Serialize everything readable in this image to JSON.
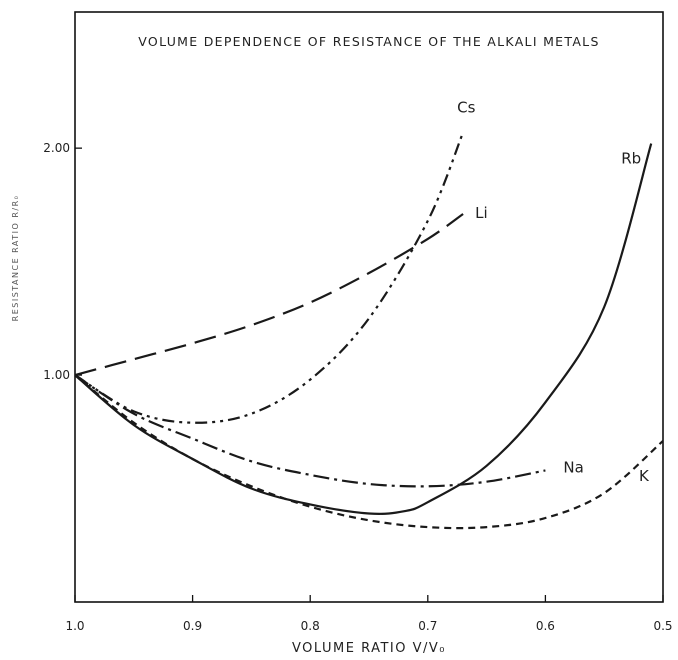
{
  "chart_data": {
    "type": "line",
    "title": "VOLUME DEPENDENCE OF RESISTANCE OF THE ALKALI METALS",
    "xlabel": "VOLUME RATIO V/V₀",
    "ylabel": "RESISTANCE RATIO R/R₀",
    "xlim": [
      1.0,
      0.5
    ],
    "ylim": [
      0.0,
      2.6
    ],
    "x_ticks": [
      1.0,
      0.9,
      0.8,
      0.7,
      0.6,
      0.5
    ],
    "x_tick_labels": [
      "1.0",
      "0.9",
      "0.8",
      "0.7",
      "0.6",
      "0.5"
    ],
    "y_ticks": [
      1.0,
      2.0
    ],
    "y_tick_labels": [
      "1.00",
      "2.00"
    ],
    "grid": false,
    "legend": "none",
    "series": [
      {
        "name": "Cs",
        "dash": "dashdotdot",
        "x": [
          1.0,
          0.95,
          0.9,
          0.85,
          0.8,
          0.75,
          0.7,
          0.67
        ],
        "y": [
          1.0,
          0.84,
          0.79,
          0.83,
          0.98,
          1.25,
          1.68,
          2.07
        ]
      },
      {
        "name": "Li",
        "dash": "longdash",
        "x": [
          1.0,
          0.95,
          0.9,
          0.85,
          0.8,
          0.75,
          0.7,
          0.67
        ],
        "y": [
          1.0,
          1.07,
          1.14,
          1.22,
          1.32,
          1.45,
          1.6,
          1.71
        ]
      },
      {
        "name": "Rb",
        "dash": "solid",
        "x": [
          1.0,
          0.95,
          0.9,
          0.85,
          0.8,
          0.75,
          0.72,
          0.7,
          0.65,
          0.6,
          0.55,
          0.51
        ],
        "y": [
          1.0,
          0.78,
          0.63,
          0.5,
          0.43,
          0.39,
          0.4,
          0.44,
          0.6,
          0.88,
          1.3,
          2.02
        ]
      },
      {
        "name": "Na",
        "dash": "dashdot",
        "x": [
          1.0,
          0.95,
          0.9,
          0.85,
          0.8,
          0.75,
          0.7,
          0.65,
          0.6
        ],
        "y": [
          1.0,
          0.83,
          0.72,
          0.62,
          0.56,
          0.52,
          0.51,
          0.53,
          0.58
        ]
      },
      {
        "name": "K",
        "dash": "shortdash",
        "x": [
          1.0,
          0.95,
          0.9,
          0.85,
          0.8,
          0.75,
          0.7,
          0.65,
          0.6,
          0.55,
          0.5
        ],
        "y": [
          1.0,
          0.79,
          0.63,
          0.51,
          0.42,
          0.36,
          0.33,
          0.33,
          0.37,
          0.48,
          0.71
        ]
      }
    ]
  }
}
